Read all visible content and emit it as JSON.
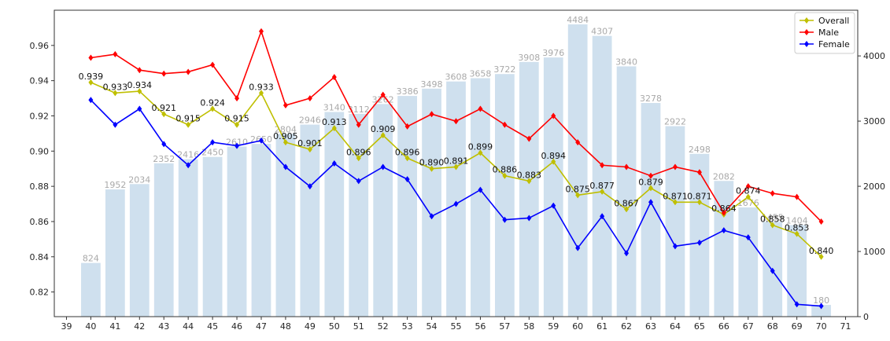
{
  "chart_data": {
    "type": "bar+line",
    "title": "",
    "xlabel": "",
    "ylabel_left": "",
    "ylabel_right": "",
    "x_ticks": [
      39,
      40,
      41,
      42,
      43,
      44,
      45,
      46,
      47,
      48,
      49,
      50,
      51,
      52,
      53,
      54,
      55,
      56,
      57,
      58,
      59,
      60,
      61,
      62,
      63,
      64,
      65,
      66,
      67,
      68,
      69,
      70,
      71
    ],
    "xlim": [
      38.5,
      71.5
    ],
    "left_axis": {
      "ylim": [
        0.806,
        0.98
      ],
      "ticks": [
        0.82,
        0.84,
        0.86,
        0.88,
        0.9,
        0.92,
        0.94,
        0.96
      ],
      "tick_labels": [
        "0.82",
        "0.84",
        "0.86",
        "0.88",
        "0.90",
        "0.92",
        "0.94",
        "0.96"
      ]
    },
    "right_axis": {
      "ylim": [
        0,
        4701
      ],
      "ticks": [
        0,
        1000,
        2000,
        3000,
        4000
      ],
      "tick_labels": [
        "0",
        "1000",
        "2000",
        "3000",
        "4000"
      ]
    },
    "bars": {
      "color": "#cfe0ee",
      "label_color": "#a9a9a9",
      "x": [
        40,
        41,
        42,
        43,
        44,
        45,
        46,
        47,
        48,
        49,
        50,
        51,
        52,
        53,
        54,
        55,
        56,
        57,
        58,
        59,
        60,
        61,
        62,
        63,
        64,
        65,
        66,
        67,
        68,
        69,
        70
      ],
      "values": [
        824,
        1952,
        2034,
        2352,
        2416,
        2450,
        2610,
        2650,
        2804,
        2946,
        3140,
        3112,
        3262,
        3386,
        3498,
        3608,
        3658,
        3722,
        3908,
        3976,
        4484,
        4307,
        3840,
        3278,
        2922,
        2498,
        2082,
        1676,
        1455,
        1404,
        180
      ],
      "labels": [
        "824",
        "1952",
        "2034",
        "2352",
        "2416",
        "2450",
        "2610",
        "2650",
        "2804",
        "2946",
        "3140",
        "3112",
        "3262",
        "3386",
        "3498",
        "3608",
        "3658",
        "3722",
        "3908",
        "3976",
        "4484",
        "4307",
        "3840",
        "3278",
        "2922",
        "2498",
        "2082",
        "1676",
        "1455",
        "1404",
        "180"
      ]
    },
    "x": [
      40,
      41,
      42,
      43,
      44,
      45,
      46,
      47,
      48,
      49,
      50,
      51,
      52,
      53,
      54,
      55,
      56,
      57,
      58,
      59,
      60,
      61,
      62,
      63,
      64,
      65,
      66,
      67,
      68,
      69,
      70
    ],
    "series": [
      {
        "name": "Overall",
        "color": "#bfbf00",
        "values": [
          0.939,
          0.933,
          0.934,
          0.921,
          0.915,
          0.924,
          0.915,
          0.933,
          0.905,
          0.901,
          0.913,
          0.896,
          0.909,
          0.896,
          0.89,
          0.891,
          0.899,
          0.886,
          0.883,
          0.894,
          0.875,
          0.877,
          0.867,
          0.879,
          0.871,
          0.871,
          0.864,
          0.874,
          0.858,
          0.853,
          0.84
        ],
        "labels": [
          "0.939",
          "0.933",
          "0.934",
          "0.921",
          "0.915",
          "0.924",
          "0.915",
          "0.933",
          "0.905",
          "0.901",
          "0.913",
          "0.896",
          "0.909",
          "0.896",
          "0.890",
          "0.891",
          "0.899",
          "0.886",
          "0.883",
          "0.894",
          "0.875",
          "0.877",
          "0.867",
          "0.879",
          "0.871",
          "0.871",
          "0.864",
          "0.874",
          "0.858",
          "0.853",
          "0.840"
        ]
      },
      {
        "name": "Male",
        "color": "#ff0000",
        "values": [
          0.953,
          0.955,
          0.946,
          0.944,
          0.945,
          0.949,
          0.93,
          0.968,
          0.926,
          0.93,
          0.942,
          0.915,
          0.932,
          0.914,
          0.921,
          0.917,
          0.924,
          0.915,
          0.907,
          0.92,
          0.905,
          0.892,
          0.891,
          0.886,
          0.891,
          0.888,
          0.865,
          0.88,
          0.876,
          0.874,
          0.86
        ]
      },
      {
        "name": "Female",
        "color": "#0000ff",
        "values": [
          0.929,
          0.915,
          0.924,
          0.904,
          0.892,
          0.905,
          0.903,
          0.906,
          0.891,
          0.88,
          0.893,
          0.883,
          0.891,
          0.884,
          0.863,
          0.87,
          0.878,
          0.861,
          0.862,
          0.869,
          0.845,
          0.863,
          0.842,
          0.871,
          0.846,
          0.848,
          0.855,
          0.851,
          0.832,
          0.813,
          0.812
        ]
      }
    ],
    "legend": {
      "position": "top-right",
      "entries": [
        "Overall",
        "Male",
        "Female"
      ]
    },
    "grid": false
  }
}
